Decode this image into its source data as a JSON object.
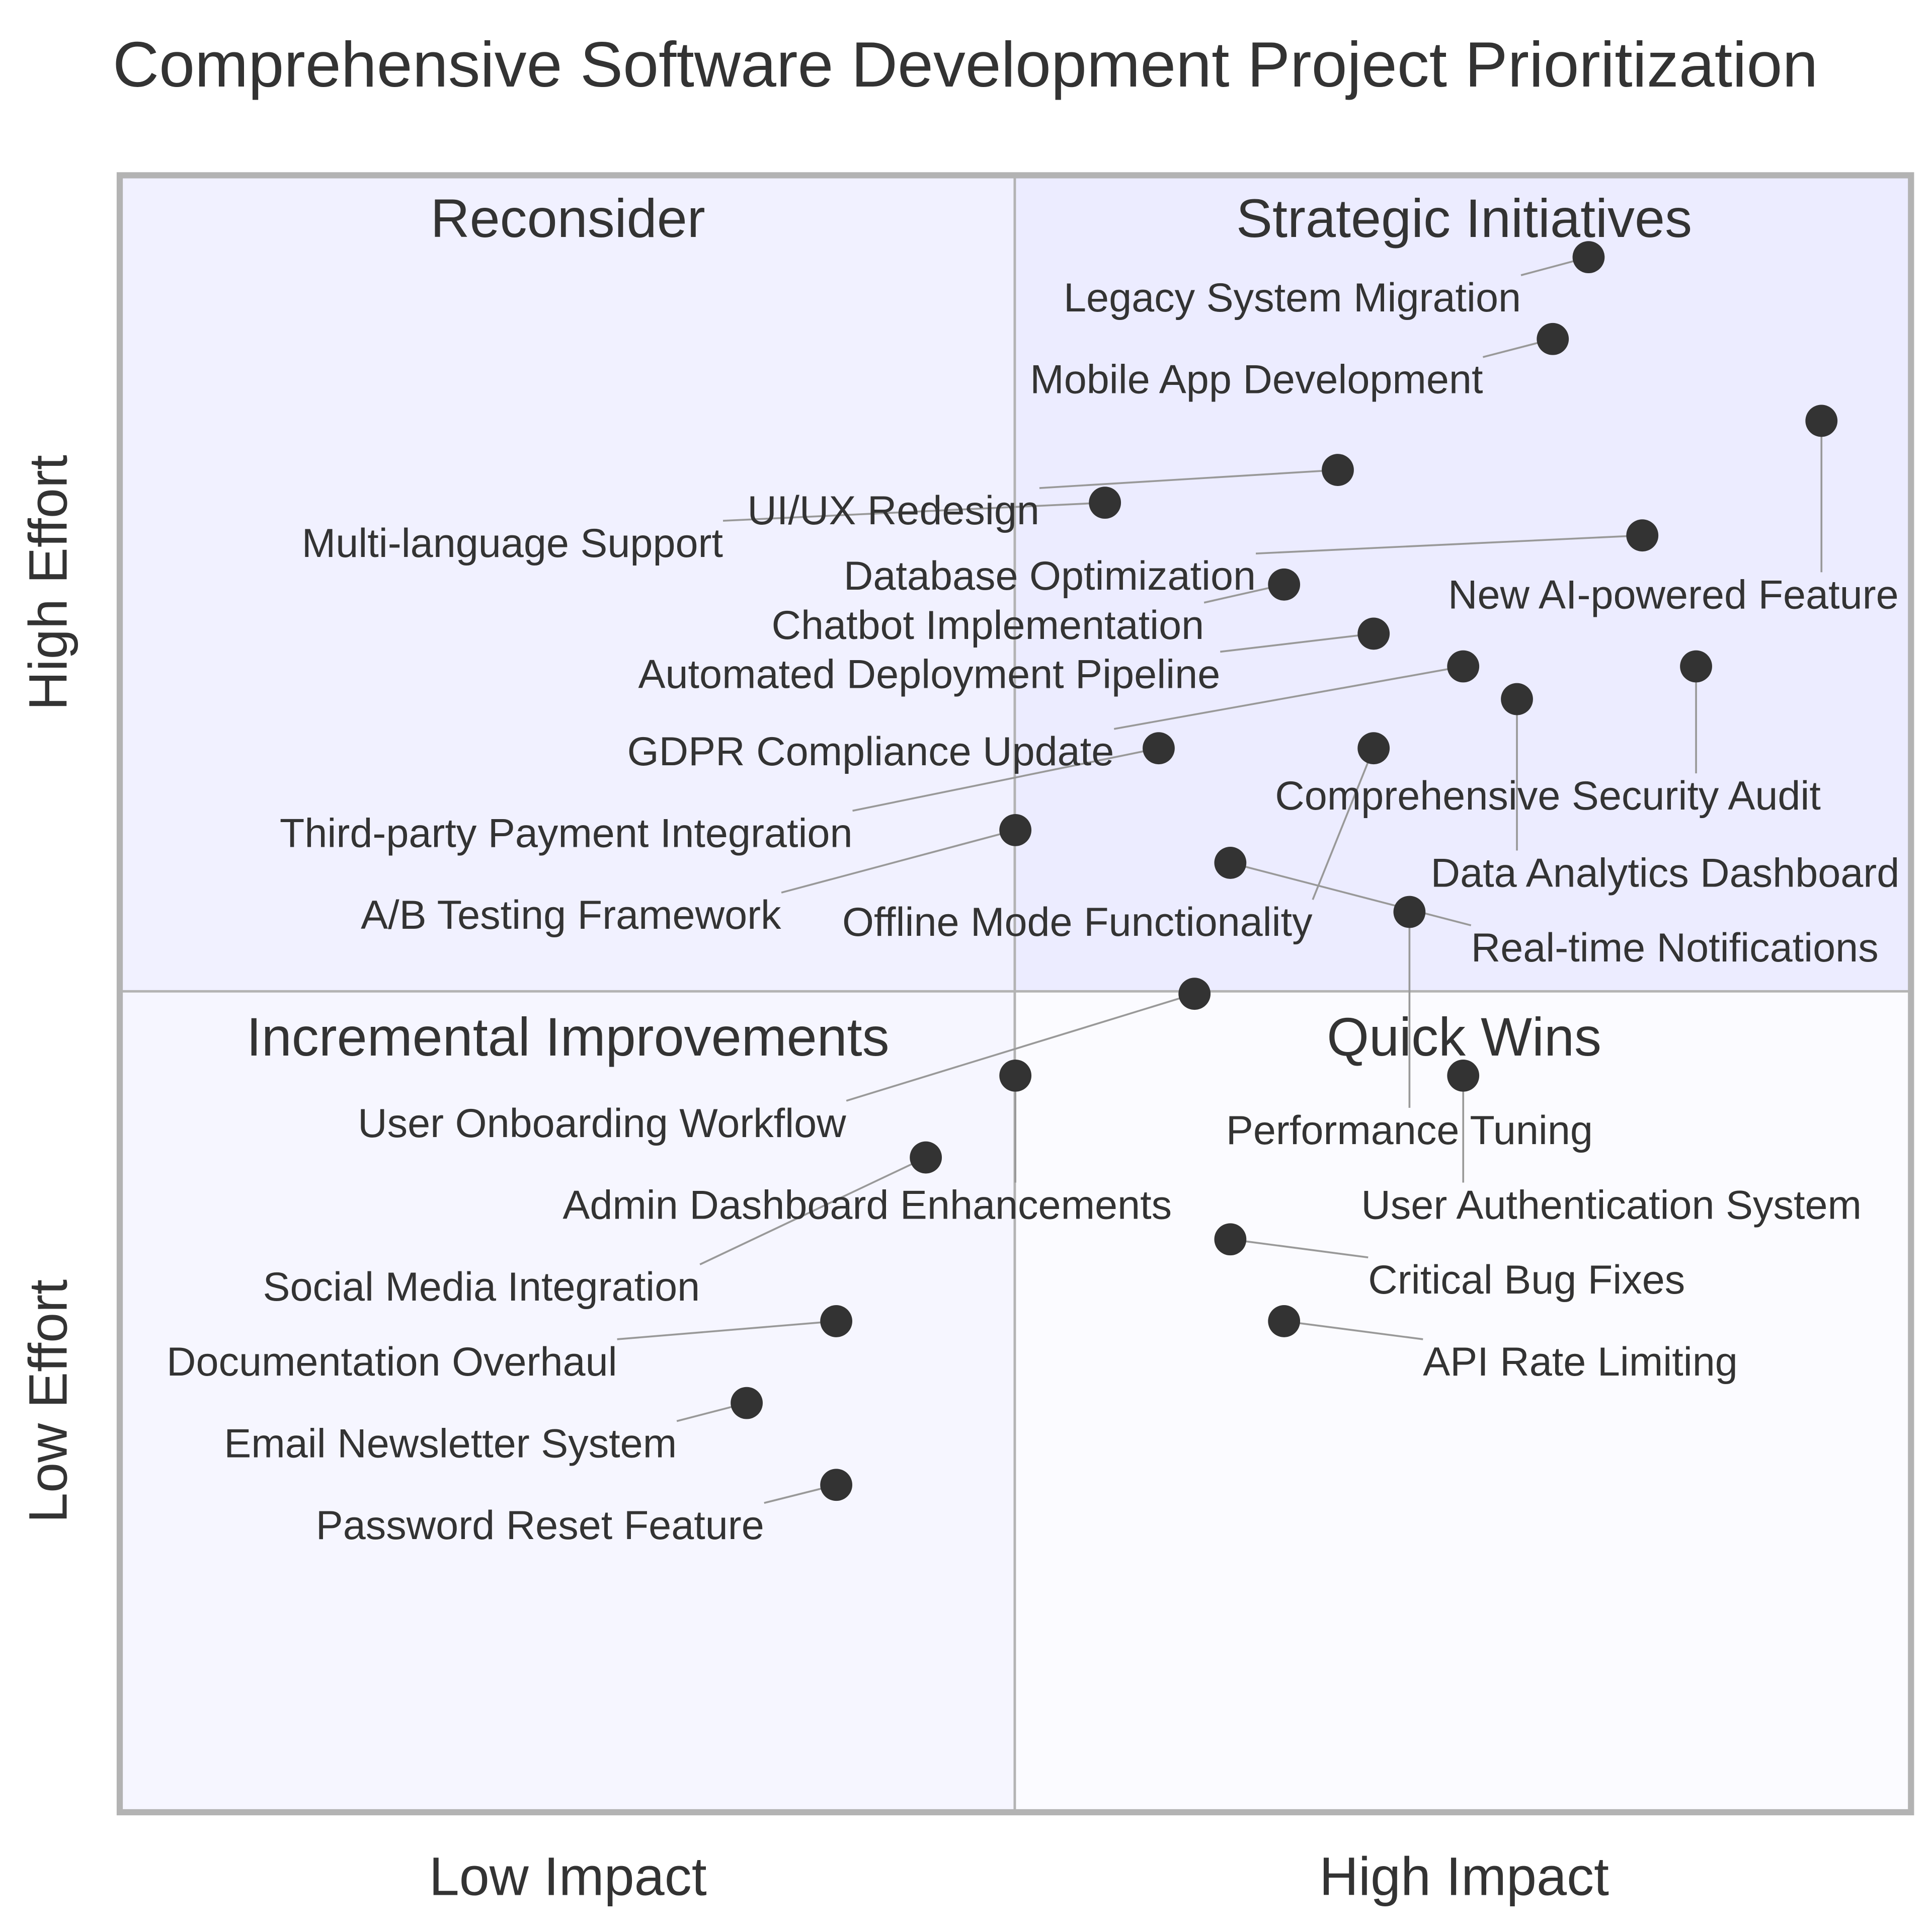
{
  "chart_data": {
    "type": "scatter",
    "title": "Comprehensive Software Development Project Prioritization",
    "x_axis": {
      "left_label": "Low Impact",
      "right_label": "High Impact",
      "range": [
        0,
        1
      ]
    },
    "y_axis": {
      "bottom_label": "Low Effort",
      "top_label": "High Effort",
      "range": [
        0,
        1
      ]
    },
    "quadrants": {
      "top_right": "Strategic Initiatives",
      "top_left": "Reconsider",
      "bottom_left": "Incremental Improvements",
      "bottom_right": "Quick Wins"
    },
    "colors": {
      "top_right_fill": "#ECECFF",
      "top_left_fill": "#F1F1FF",
      "bottom_left_fill": "#F6F6FF",
      "bottom_right_fill": "#FBFBFF",
      "point": "#333333",
      "border": "#B3B3B3",
      "text": "#333333"
    },
    "points": [
      {
        "label": "Legacy System Migration",
        "x": 0.82,
        "y": 0.95
      },
      {
        "label": "Mobile App Development",
        "x": 0.8,
        "y": 0.9
      },
      {
        "label": "New AI-powered Feature",
        "x": 0.95,
        "y": 0.85
      },
      {
        "label": "UI/UX Redesign",
        "x": 0.68,
        "y": 0.82
      },
      {
        "label": "Multi-language Support",
        "x": 0.55,
        "y": 0.8
      },
      {
        "label": "Database Optimization",
        "x": 0.85,
        "y": 0.78
      },
      {
        "label": "Chatbot Implementation",
        "x": 0.65,
        "y": 0.75
      },
      {
        "label": "Automated Deployment Pipeline",
        "x": 0.7,
        "y": 0.72
      },
      {
        "label": "GDPR Compliance Update",
        "x": 0.75,
        "y": 0.7
      },
      {
        "label": "Comprehensive Security Audit",
        "x": 0.88,
        "y": 0.7
      },
      {
        "label": "Data Analytics Dashboard",
        "x": 0.78,
        "y": 0.68
      },
      {
        "label": "Third-party Payment Integration",
        "x": 0.58,
        "y": 0.65
      },
      {
        "label": "Offline Mode Functionality",
        "x": 0.7,
        "y": 0.65
      },
      {
        "label": "A/B Testing Framework",
        "x": 0.5,
        "y": 0.6
      },
      {
        "label": "Real-time Notifications",
        "x": 0.62,
        "y": 0.58
      },
      {
        "label": "Performance Tuning",
        "x": 0.72,
        "y": 0.55
      },
      {
        "label": "User Onboarding Workflow",
        "x": 0.6,
        "y": 0.5
      },
      {
        "label": "Admin Dashboard Enhancements",
        "x": 0.5,
        "y": 0.45
      },
      {
        "label": "User Authentication System",
        "x": 0.75,
        "y": 0.45
      },
      {
        "label": "Social Media Integration",
        "x": 0.45,
        "y": 0.4
      },
      {
        "label": "Critical Bug Fixes",
        "x": 0.62,
        "y": 0.35
      },
      {
        "label": "Documentation Overhaul",
        "x": 0.4,
        "y": 0.3
      },
      {
        "label": "API Rate Limiting",
        "x": 0.65,
        "y": 0.3
      },
      {
        "label": "Email Newsletter System",
        "x": 0.35,
        "y": 0.25
      },
      {
        "label": "Password Reset Feature",
        "x": 0.4,
        "y": 0.2
      }
    ]
  }
}
